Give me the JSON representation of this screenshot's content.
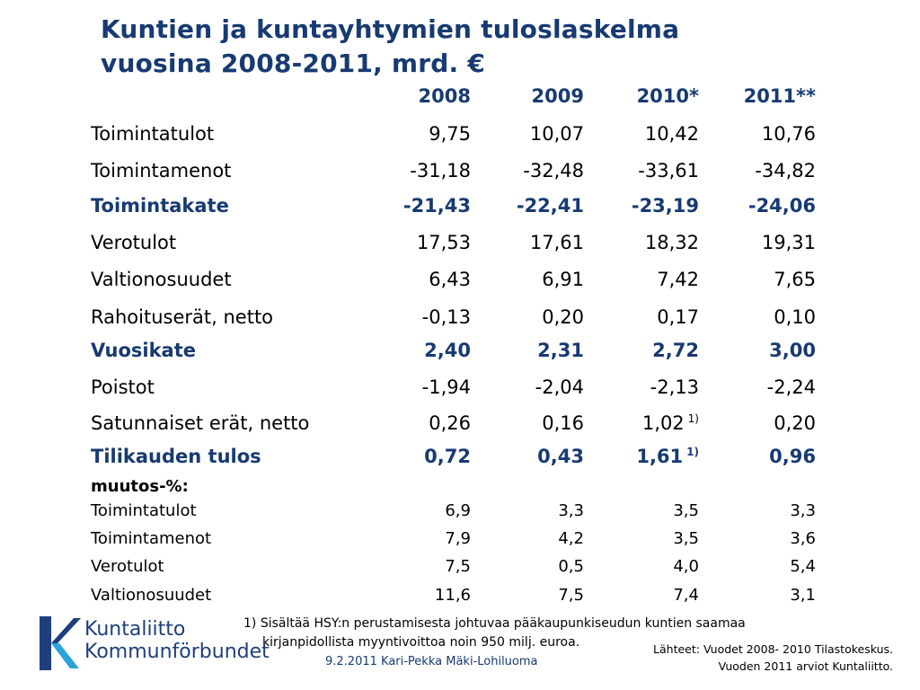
{
  "title": {
    "line1": "Kuntien ja kuntayhtymien tuloslaskelma",
    "line2": "vuosina 2008-2011, mrd. €"
  },
  "headers": [
    "2008",
    "2009",
    "2010*",
    "2011**"
  ],
  "rows": [
    {
      "label": "Toimintatulot",
      "values": [
        "9,75",
        "10,07",
        "10,42",
        "10,76"
      ],
      "note": ""
    },
    {
      "label": "Toimintamenot",
      "values": [
        "-31,18",
        "-32,48",
        "-33,61",
        "-34,82"
      ],
      "note": ""
    },
    {
      "label": "Toimintakate",
      "values": [
        "-21,43",
        "-22,41",
        "-23,19",
        "-24,06"
      ],
      "note": ""
    },
    {
      "label": "Verotulot",
      "values": [
        "17,53",
        "17,61",
        "18,32",
        "19,31"
      ],
      "note": ""
    },
    {
      "label": "Valtionosuudet",
      "values": [
        "6,43",
        "6,91",
        "7,42",
        "7,65"
      ],
      "note": ""
    },
    {
      "label": "Rahoituserät, netto",
      "values": [
        "-0,13",
        "0,20",
        "0,17",
        "0,10"
      ],
      "note": ""
    },
    {
      "label": "Vuosikate",
      "values": [
        "2,40",
        "2,31",
        "2,72",
        "3,00"
      ],
      "note": ""
    },
    {
      "label": "Poistot",
      "values": [
        "-1,94",
        "-2,04",
        "-2,13",
        "-2,24"
      ],
      "note": ""
    },
    {
      "label": "Satunnaiset erät, netto",
      "values": [
        "0,26",
        "0,16",
        "1,02",
        "0,20"
      ],
      "note": "1)"
    },
    {
      "label": "Tilikauden tulos",
      "values": [
        "0,72",
        "0,43",
        "1,61",
        "0,96"
      ],
      "note": "1)"
    }
  ],
  "change_section": {
    "heading": "muutos-%:",
    "rows": [
      {
        "label": "Toimintatulot",
        "values": [
          "6,9",
          "3,3",
          "3,5",
          "3,3"
        ]
      },
      {
        "label": "Toimintamenot",
        "values": [
          "7,9",
          "4,2",
          "3,5",
          "3,6"
        ]
      },
      {
        "label": "Verotulot",
        "values": [
          "7,5",
          "0,5",
          "4,0",
          "5,4"
        ]
      },
      {
        "label": "Valtionosuudet",
        "values": [
          "11,6",
          "7,5",
          "7,4",
          "3,1"
        ]
      }
    ]
  },
  "footnote": {
    "line1": "1) Sisältää HSY:n perustamisesta johtuvaa pääkaupunkiseudun kuntien saamaa",
    "line2": "kirjanpidollista myyntivoittoa  noin 950 milj. euroa."
  },
  "sources": {
    "line1": "Lähteet: Vuodet 2008- 2010 Tilastokeskus.",
    "line2": "Vuoden  2011 arviot Kuntaliitto."
  },
  "footer": "9.2.2011 Kari-Pekka Mäki-Lohiluoma",
  "logo": {
    "line1": "Kuntaliitto",
    "line2": "Kommunförbundet",
    "icon": "kuntaliitto-k-logo",
    "colors": {
      "dark": "#1d3f7b",
      "light": "#2aa3d8"
    }
  },
  "colors": {
    "title": "#173a72",
    "emphasis": "#173a72"
  }
}
